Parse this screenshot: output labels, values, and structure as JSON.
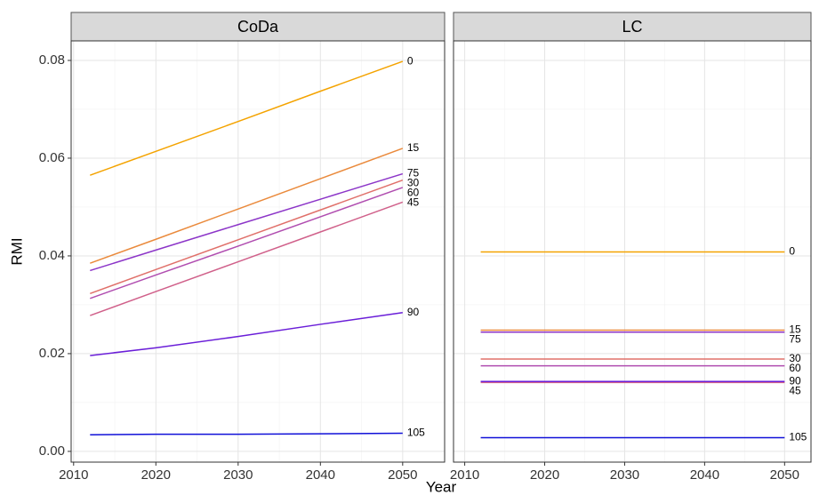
{
  "chart_data": [
    {
      "type": "line",
      "title": "CoDa",
      "xlabel": "Year",
      "ylabel": "RMI",
      "x": [
        2012,
        2020,
        2030,
        2040,
        2050
      ],
      "xlim": [
        2009.7,
        2055.1
      ],
      "xticks": [
        2010,
        2020,
        2030,
        2040,
        2050
      ],
      "ylim": [
        -0.0022,
        0.084
      ],
      "yticks": [
        {
          "value": 0,
          "label": "0.00"
        },
        0.02,
        0.04,
        0.06,
        0.08
      ],
      "grid": true,
      "series": [
        {
          "name": "0",
          "color": "#f4a300",
          "values": [
            0.0565,
            0.0614,
            0.0675,
            0.0737,
            0.0798
          ]
        },
        {
          "name": "15",
          "color": "#ea8a3c",
          "values": [
            0.0385,
            0.0434,
            0.0496,
            0.0558,
            0.062
          ]
        },
        {
          "name": "30",
          "color": "#e0706a",
          "values": [
            0.0323,
            0.0372,
            0.0433,
            0.0494,
            0.0555
          ]
        },
        {
          "name": "45",
          "color": "#d0608a",
          "values": [
            0.0278,
            0.0327,
            0.0388,
            0.0449,
            0.051
          ]
        },
        {
          "name": "60",
          "color": "#b04db0",
          "values": [
            0.0313,
            0.0361,
            0.042,
            0.048,
            0.054
          ]
        },
        {
          "name": "75",
          "color": "#8c35c8",
          "values": [
            0.037,
            0.0412,
            0.0464,
            0.0516,
            0.0568
          ]
        },
        {
          "name": "90",
          "color": "#6a1ed8",
          "values": [
            0.0196,
            0.0212,
            0.0235,
            0.026,
            0.0284
          ]
        },
        {
          "name": "105",
          "color": "#1010d8",
          "values": [
            0.0034,
            0.0035,
            0.0035,
            0.0036,
            0.0037
          ]
        }
      ]
    },
    {
      "type": "line",
      "title": "LC",
      "x": [
        2012,
        2050
      ],
      "xlim": [
        2008.6,
        2053.3
      ],
      "xticks": [
        2010,
        2020,
        2030,
        2040,
        2050
      ],
      "series": [
        {
          "name": "0",
          "color": "#f4a300",
          "values": [
            0.0408,
            0.0408
          ]
        },
        {
          "name": "15",
          "color": "#ea8a3c",
          "values": [
            0.0248,
            0.0248
          ]
        },
        {
          "name": "30",
          "color": "#e0706a",
          "values": [
            0.0189,
            0.0189
          ]
        },
        {
          "name": "45",
          "color": "#d0608a",
          "values": [
            0.0141,
            0.0141
          ]
        },
        {
          "name": "60",
          "color": "#b04db0",
          "values": [
            0.0175,
            0.0175
          ]
        },
        {
          "name": "75",
          "color": "#8c35c8",
          "values": [
            0.0244,
            0.0244
          ]
        },
        {
          "name": "90",
          "color": "#6a1ed8",
          "values": [
            0.0143,
            0.0143
          ]
        },
        {
          "name": "105",
          "color": "#1010d8",
          "values": [
            0.0028,
            0.0028
          ]
        }
      ]
    }
  ]
}
